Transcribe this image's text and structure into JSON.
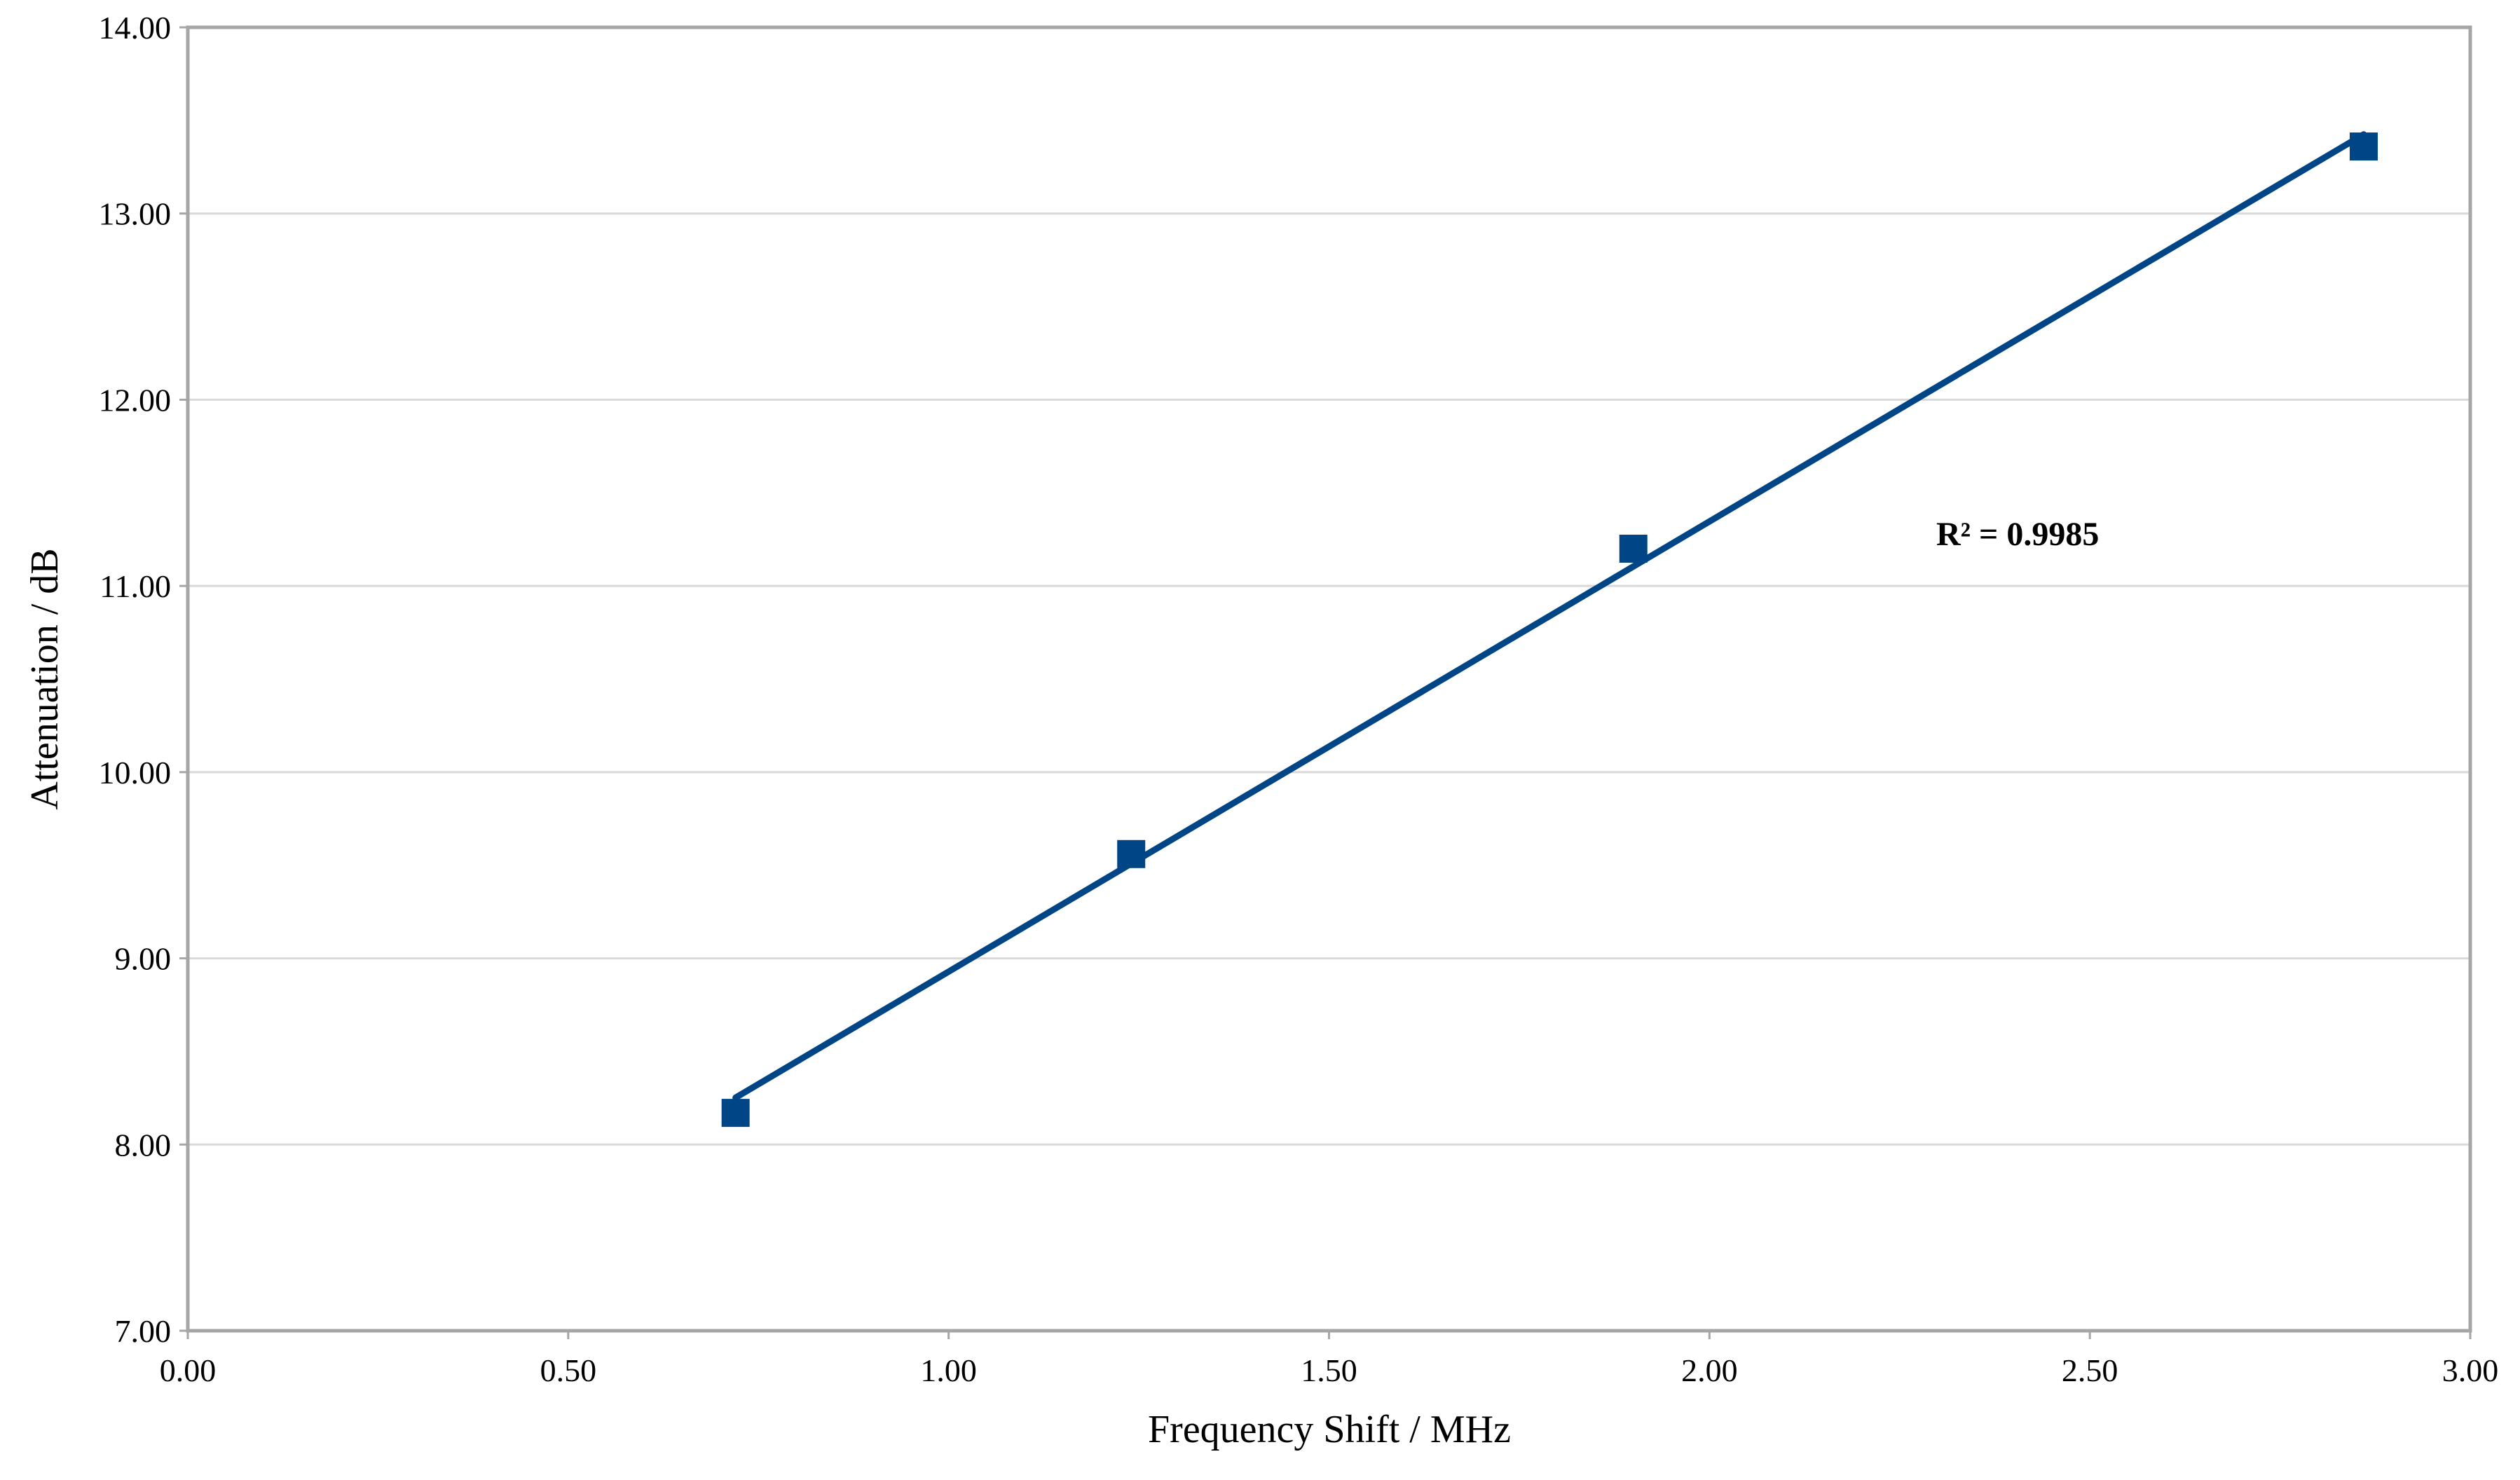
{
  "chart_data": {
    "type": "scatter",
    "x_label": "Frequency Shift / MHz",
    "y_label": "Attenuation / dB",
    "annotation": "R² = 0.9985",
    "x": [
      0.72,
      1.24,
      1.9,
      2.86
    ],
    "values": [
      8.17,
      9.56,
      11.2,
      13.36
    ],
    "color": "#004586",
    "trendline": true,
    "grid": true,
    "xlim": [
      0,
      3
    ],
    "ylim": [
      7,
      14
    ],
    "xticks": [
      {
        "value": 0,
        "label": "0.00"
      },
      {
        "value": 0.5,
        "label": "0.50"
      },
      {
        "value": 1,
        "label": "1.00"
      },
      {
        "value": 1.5,
        "label": "1.50"
      },
      {
        "value": 2,
        "label": "2.00"
      },
      {
        "value": 2.5,
        "label": "2.50"
      },
      {
        "value": 3,
        "label": "3.00"
      }
    ],
    "yticks": [
      {
        "value": 7,
        "label": "7.00"
      },
      {
        "value": 8,
        "label": "8.00"
      },
      {
        "value": 9,
        "label": "9.00"
      },
      {
        "value": 10,
        "label": "10.00"
      },
      {
        "value": 11,
        "label": "11.00"
      },
      {
        "value": 12,
        "label": "12.00"
      },
      {
        "value": 13,
        "label": "13.00"
      },
      {
        "value": 14,
        "label": "14.00"
      }
    ]
  }
}
